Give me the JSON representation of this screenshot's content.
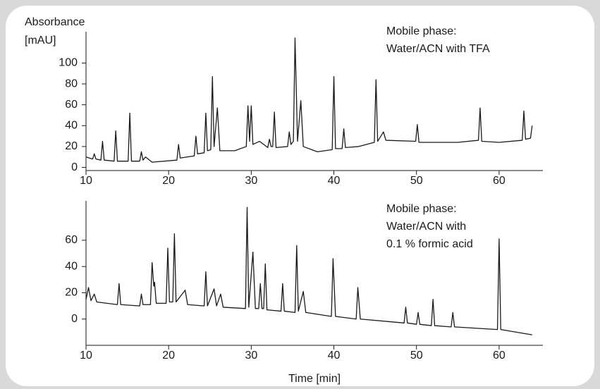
{
  "chart_data": [
    {
      "type": "line",
      "ylabel": [
        "Absorbance",
        "[mAU]"
      ],
      "annotation": [
        "Mobile phase:",
        "Water/ACN with TFA"
      ],
      "xlim": [
        10,
        65.3
      ],
      "xticks": [
        10,
        20,
        30,
        40,
        50,
        60
      ],
      "ylim": [
        -3,
        130
      ],
      "yticks": [
        0,
        20,
        40,
        60,
        80,
        100
      ],
      "series": [
        {
          "color": "#1a1a1a",
          "x": [
            10,
            10.8,
            11,
            11.2,
            11.8,
            12,
            12.2,
            13.4,
            13.6,
            13.8,
            15.1,
            15.3,
            15.5,
            16.5,
            16.7,
            16.9,
            17.2,
            18,
            21,
            21.2,
            21.4,
            23.1,
            23.3,
            23.5,
            24.3,
            24.5,
            24.7,
            25.1,
            25.3,
            25.5,
            25.9,
            26.2,
            28,
            29.4,
            29.6,
            29.8,
            30,
            30.2,
            31,
            32,
            32.2,
            32.4,
            32.6,
            32.8,
            33,
            34.4,
            34.6,
            34.8,
            35.1,
            35.3,
            35.6,
            36,
            36.3,
            38,
            39.8,
            40,
            40.2,
            41,
            41.2,
            41.4,
            43,
            44.9,
            45.1,
            45.3,
            46,
            46.3,
            49.9,
            50.1,
            50.3,
            55,
            57.5,
            57.7,
            57.9,
            60,
            62.8,
            63,
            63.2,
            63.8,
            64
          ],
          "values": [
            10,
            8,
            13,
            8,
            7,
            25,
            7,
            6,
            35,
            6,
            6,
            52,
            6,
            6,
            15,
            7,
            10,
            5,
            7,
            22,
            9,
            11,
            30,
            13,
            14,
            52,
            16,
            17,
            87,
            20,
            57,
            16,
            16,
            20,
            59,
            25,
            59,
            22,
            25,
            19,
            27,
            20,
            20,
            53,
            19,
            20,
            34,
            22,
            25,
            124,
            25,
            64,
            20,
            15,
            17,
            87,
            18,
            18,
            37,
            19,
            20,
            24,
            84,
            25,
            34,
            26,
            25,
            41,
            24,
            24,
            26,
            57,
            25,
            24,
            26,
            54,
            27,
            28,
            40
          ]
        }
      ]
    },
    {
      "type": "line",
      "xlabel": "Time [min]",
      "annotation": [
        "Mobile phase:",
        "Water/ACN with",
        "0.1 % formic acid"
      ],
      "xlim": [
        10,
        65.3
      ],
      "xticks": [
        10,
        20,
        30,
        40,
        50,
        60
      ],
      "ylim": [
        -20,
        90
      ],
      "yticks": [
        0,
        20,
        40,
        60
      ],
      "series": [
        {
          "color": "#1a1a1a",
          "x": [
            10,
            10.3,
            10.6,
            11,
            11.3,
            13.8,
            14,
            14.2,
            16.5,
            16.7,
            16.9,
            17.8,
            18,
            18.2,
            18.3,
            18.5,
            19.7,
            19.9,
            20.1,
            20.5,
            20.7,
            20.9,
            22,
            22.3,
            24.3,
            24.5,
            24.7,
            25.5,
            25.8,
            26.3,
            26.6,
            29.3,
            29.5,
            29.7,
            30.2,
            30.5,
            30.9,
            31.1,
            31.3,
            31.5,
            31.7,
            31.9,
            33.6,
            33.8,
            34,
            35.3,
            35.5,
            35.7,
            36.3,
            36.6,
            39.7,
            39.9,
            40.2,
            42.7,
            42.9,
            43.2,
            48.5,
            48.7,
            48.9,
            50,
            50.2,
            50.4,
            51.8,
            52,
            52.2,
            54.2,
            54.4,
            54.6,
            59.8,
            60,
            60.2,
            64
          ],
          "values": [
            15,
            24,
            14,
            19,
            13,
            11,
            27,
            11,
            10,
            19,
            11,
            11,
            43,
            25,
            28,
            12,
            12,
            54,
            13,
            13,
            65,
            13,
            22,
            11,
            10,
            36,
            10,
            23,
            10,
            19,
            9,
            8,
            85,
            9,
            51,
            8,
            8,
            27,
            8,
            8,
            42,
            7,
            6,
            27,
            6,
            5,
            56,
            6,
            21,
            5,
            2,
            46,
            2,
            0,
            24,
            0,
            -3,
            9,
            -3,
            -4,
            5,
            -4,
            -5,
            15,
            -5,
            -6,
            5,
            -6,
            -8,
            61,
            -8,
            -12
          ]
        }
      ]
    }
  ]
}
